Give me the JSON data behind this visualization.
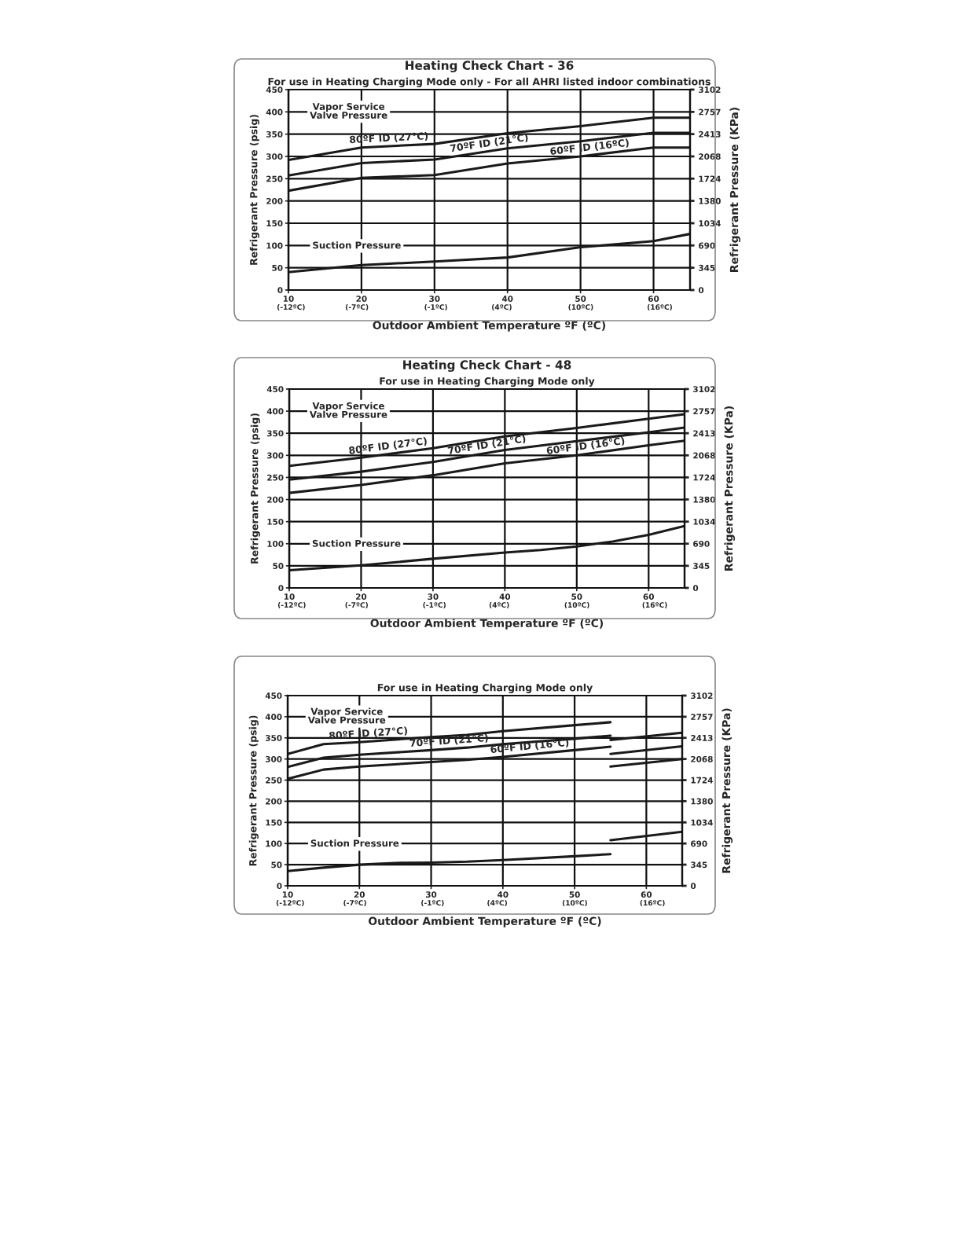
{
  "chart_data": [
    {
      "type": "line",
      "title": "Heating Check Chart - 36",
      "subtitle": "For use in Heating Charging Mode only - For all AHRI listed indoor combinations",
      "xlabel": "Outdoor Ambient Temperature ºF (ºC)",
      "ylabel": "Refrigerant Pressure (psig)",
      "y2label": "Refrigerant Pressure (KPa)",
      "xlim": [
        10,
        65
      ],
      "xticks": [
        10,
        20,
        30,
        40,
        50,
        60
      ],
      "x2lim": [
        -12.2,
        18.3
      ],
      "x2ticks": [
        {
          "value": -12,
          "label": "(-12ºC)"
        },
        {
          "value": -7,
          "label": "(-7ºC)"
        },
        {
          "value": -1,
          "label": "(-1ºC)"
        },
        {
          "value": 4,
          "label": "(4ºC)"
        },
        {
          "value": 10,
          "label": "(10ºC)"
        },
        {
          "value": 16,
          "label": "(16ºC)"
        }
      ],
      "ylim": [
        0,
        450
      ],
      "yticks": [
        0,
        50,
        100,
        150,
        200,
        250,
        300,
        350,
        400,
        450
      ],
      "y2lim": [
        0,
        3102
      ],
      "y2ticks": [
        0,
        345,
        690,
        1034,
        1380,
        1724,
        2068,
        2413,
        2757,
        3102
      ],
      "grid": true,
      "annotations": [
        "Vapor Service\nValve Pressure",
        "Suction Pressure"
      ],
      "series": [
        {
          "name": "80ºF ID (27°C)",
          "color": "#1a1a1a",
          "x": [
            10,
            20,
            30,
            40,
            50,
            60,
            65
          ],
          "values": [
            292,
            320,
            328,
            352,
            368,
            387,
            387
          ]
        },
        {
          "name": "70ºF ID (21°C)",
          "color": "#1a1a1a",
          "x": [
            10,
            20,
            30,
            40,
            50,
            60,
            65
          ],
          "values": [
            257,
            285,
            293,
            318,
            334,
            353,
            353
          ]
        },
        {
          "name": "60ºF ID (16ºC)",
          "color": "#1a1a1a",
          "x": [
            10,
            20,
            30,
            40,
            50,
            60,
            65
          ],
          "values": [
            223,
            252,
            258,
            284,
            300,
            320,
            320
          ]
        },
        {
          "color": "#1a1a1a",
          "x": [
            10,
            20,
            30,
            40,
            50,
            60,
            65
          ],
          "values": [
            40,
            56,
            64,
            73,
            96,
            110,
            126
          ]
        }
      ]
    },
    {
      "type": "line",
      "title": "Heating Check Chart - 48",
      "subtitle": "For use in Heating Charging Mode only",
      "xlabel": "Outdoor Ambient Temperature ºF (ºC)",
      "ylabel": "Refrigerant Pressure (psig)",
      "y2label": "Refrigerant Pressure (KPa)",
      "xlim": [
        10,
        65
      ],
      "xticks": [
        10,
        20,
        30,
        40,
        50,
        60
      ],
      "x2lim": [
        -12.2,
        18.3
      ],
      "x2ticks": [
        {
          "value": -12,
          "label": "(-12ºC)"
        },
        {
          "value": -7,
          "label": "(-7ºC)"
        },
        {
          "value": -1,
          "label": "(-1ºC)"
        },
        {
          "value": 4,
          "label": "(4ºC)"
        },
        {
          "value": 10,
          "label": "(10ºC)"
        },
        {
          "value": 16,
          "label": "(16ºC)"
        }
      ],
      "ylim": [
        0,
        450
      ],
      "yticks": [
        0,
        50,
        100,
        150,
        200,
        250,
        300,
        350,
        400,
        450
      ],
      "y2lim": [
        0,
        3102
      ],
      "y2ticks": [
        0,
        345,
        690,
        1034,
        1380,
        1724,
        2068,
        2413,
        2757,
        3102
      ],
      "grid": true,
      "annotations": [
        "Vapor Service\nValve Pressure",
        "Suction Pressure"
      ],
      "series": [
        {
          "name": "80ºF ID (27°C)",
          "color": "#1a1a1a",
          "x": [
            10,
            20,
            30,
            40,
            50,
            60,
            65
          ],
          "values": [
            276,
            295,
            316,
            343,
            362,
            383,
            393
          ]
        },
        {
          "name": "70ºF ID (21°C)",
          "color": "#1a1a1a",
          "x": [
            10,
            20,
            30,
            40,
            50,
            60,
            65
          ],
          "values": [
            245,
            263,
            285,
            312,
            332,
            352,
            363
          ]
        },
        {
          "name": "60ºF ID (16°C)",
          "color": "#1a1a1a",
          "x": [
            10,
            20,
            30,
            40,
            50,
            60,
            65
          ],
          "values": [
            215,
            233,
            255,
            282,
            300,
            323,
            333
          ]
        },
        {
          "color": "#1a1a1a",
          "x": [
            10,
            20,
            30,
            40,
            45,
            50,
            55,
            60,
            65
          ],
          "values": [
            40,
            51,
            66,
            80,
            86,
            94,
            105,
            120,
            140
          ]
        }
      ]
    },
    {
      "type": "line",
      "subtitle": "For use in Heating Charging Mode only",
      "xlabel": "Outdoor Ambient Temperature ºF (ºC)",
      "ylabel": "Refrigerant Pressure (psig)",
      "y2label": "Refrigerant Pressure (KPa)",
      "xlim": [
        10,
        65
      ],
      "xticks": [
        10,
        20,
        30,
        40,
        50,
        60
      ],
      "x2lim": [
        -12.2,
        18.3
      ],
      "x2ticks": [
        {
          "value": -12,
          "label": "(-12ºC)"
        },
        {
          "value": -7,
          "label": "(-7ºC)"
        },
        {
          "value": -1,
          "label": "(-1ºC)"
        },
        {
          "value": 4,
          "label": "(4ºC)"
        },
        {
          "value": 10,
          "label": "(10ºC)"
        },
        {
          "value": 16,
          "label": "(16ºC)"
        }
      ],
      "ylim": [
        0,
        450
      ],
      "yticks": [
        0,
        50,
        100,
        150,
        200,
        250,
        300,
        350,
        400,
        450
      ],
      "y2lim": [
        0,
        3102
      ],
      "y2ticks": [
        0,
        345,
        690,
        1034,
        1380,
        1724,
        2068,
        2413,
        2757,
        3102
      ],
      "grid": true,
      "annotations": [
        "Vapor Service\nValve Pressure",
        "Suction Pressure"
      ],
      "series": [
        {
          "name": "80ºF ID (27°C)",
          "color": "#1a1a1a",
          "x": [
            10,
            15,
            20,
            30,
            35,
            40,
            50,
            55,
            null,
            55,
            65
          ],
          "values": [
            312,
            335,
            340,
            352,
            357,
            366,
            380,
            387,
            null,
            345,
            362
          ]
        },
        {
          "name": "70ºF ID (21°C)",
          "color": "#1a1a1a",
          "x": [
            10,
            15,
            20,
            30,
            35,
            40,
            50,
            55,
            null,
            55,
            65
          ],
          "values": [
            281,
            303,
            310,
            321,
            327,
            335,
            348,
            355,
            null,
            312,
            330
          ]
        },
        {
          "name": "60ºF ID (16°C)",
          "color": "#1a1a1a",
          "x": [
            10,
            15,
            20,
            30,
            35,
            40,
            50,
            55,
            null,
            55,
            65
          ],
          "values": [
            253,
            275,
            282,
            293,
            298,
            305,
            321,
            329,
            null,
            282,
            300
          ]
        },
        {
          "color": "#1a1a1a",
          "x": [
            10,
            15,
            20,
            25,
            30,
            35,
            40,
            50,
            55,
            null,
            55,
            65
          ],
          "values": [
            35,
            43,
            50,
            54,
            55,
            57,
            61,
            70,
            75,
            null,
            108,
            128
          ]
        }
      ]
    }
  ]
}
